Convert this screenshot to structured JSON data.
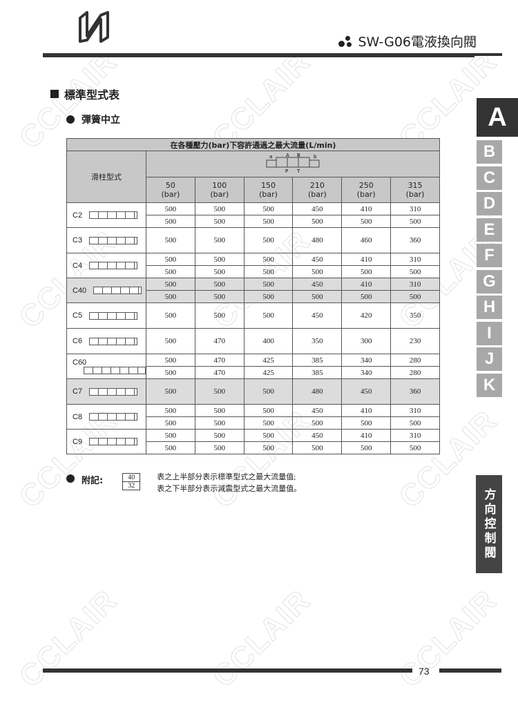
{
  "header": {
    "title": "SW-G06電液換向閥"
  },
  "section": {
    "title": "標準型式表",
    "subtitle": "彈簧中立"
  },
  "watermark": "CCLAIR",
  "table": {
    "title": "在各種壓力(bar)下容許通過之最大流量(L/min)",
    "spool_header": "滑柱型式",
    "symbol_labels": {
      "a": "a",
      "A": "A",
      "B": "B",
      "b": "b",
      "P": "P",
      "T": "T"
    },
    "pressures": [
      {
        "v": "50",
        "u": "(bar)"
      },
      {
        "v": "100",
        "u": "(bar)"
      },
      {
        "v": "150",
        "u": "(bar)"
      },
      {
        "v": "210",
        "u": "(bar)"
      },
      {
        "v": "250",
        "u": "(bar)"
      },
      {
        "v": "315",
        "u": "(bar)"
      }
    ],
    "rows": [
      {
        "type": "C2",
        "shaded": false,
        "values": [
          [
            "500",
            "500",
            "500",
            "450",
            "410",
            "310"
          ],
          [
            "500",
            "500",
            "500",
            "500",
            "500",
            "500"
          ]
        ]
      },
      {
        "type": "C3",
        "shaded": false,
        "values": [
          [
            "500",
            "500",
            "500",
            "480",
            "460",
            "360"
          ]
        ]
      },
      {
        "type": "C4",
        "shaded": false,
        "values": [
          [
            "500",
            "500",
            "500",
            "450",
            "410",
            "310"
          ],
          [
            "500",
            "500",
            "500",
            "500",
            "500",
            "500"
          ]
        ]
      },
      {
        "type": "C40",
        "shaded": true,
        "values": [
          [
            "500",
            "500",
            "500",
            "450",
            "410",
            "310"
          ],
          [
            "500",
            "500",
            "500",
            "500",
            "500",
            "500"
          ]
        ]
      },
      {
        "type": "C5",
        "shaded": false,
        "values": [
          [
            "500",
            "500",
            "500",
            "450",
            "420",
            "350"
          ]
        ]
      },
      {
        "type": "C6",
        "shaded": false,
        "values": [
          [
            "500",
            "470",
            "400",
            "350",
            "300",
            "230"
          ]
        ]
      },
      {
        "type": "C60",
        "shaded": false,
        "values": [
          [
            "500",
            "470",
            "425",
            "385",
            "340",
            "280"
          ],
          [
            "500",
            "470",
            "425",
            "385",
            "340",
            "280"
          ]
        ]
      },
      {
        "type": "C7",
        "shaded": true,
        "values": [
          [
            "500",
            "500",
            "500",
            "480",
            "450",
            "360"
          ]
        ]
      },
      {
        "type": "C8",
        "shaded": false,
        "values": [
          [
            "500",
            "500",
            "500",
            "450",
            "410",
            "310"
          ],
          [
            "500",
            "500",
            "500",
            "500",
            "500",
            "500"
          ]
        ]
      },
      {
        "type": "C9",
        "shaded": false,
        "values": [
          [
            "500",
            "500",
            "500",
            "450",
            "410",
            "310"
          ],
          [
            "500",
            "500",
            "500",
            "500",
            "500",
            "500"
          ]
        ]
      }
    ]
  },
  "note": {
    "label": "附記:",
    "frac_top": "40",
    "frac_bottom": "32",
    "line1": "表之上半部分表示標準型式之最大流量值;",
    "line2": "表之下半部分表示減震型式之最大流量值。"
  },
  "side_tabs": {
    "active": "A",
    "others": [
      "B",
      "C",
      "D",
      "E",
      "F",
      "G",
      "H",
      "I",
      "J",
      "K"
    ],
    "category": "方向控制閥"
  },
  "footer": {
    "page": "73"
  }
}
